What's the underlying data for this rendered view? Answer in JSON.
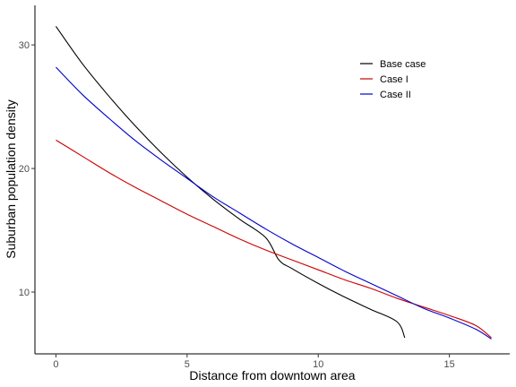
{
  "chart_data": {
    "type": "line",
    "xlabel": "Distance from downtown area",
    "ylabel": "Suburban population density",
    "xlim": [
      -0.8,
      17.3
    ],
    "ylim": [
      5.0,
      33.2
    ],
    "xticks": [
      0,
      5,
      10,
      15
    ],
    "yticks": [
      10,
      20,
      30
    ],
    "grid": false,
    "legend_position": "top-right",
    "series": [
      {
        "name": "Base case",
        "color": "#000000",
        "x": [
          0,
          1,
          2,
          3,
          4,
          5,
          6,
          7,
          8,
          8.5,
          9,
          10,
          11,
          12,
          13,
          13.3
        ],
        "y": [
          31.5,
          28.5,
          25.9,
          23.5,
          21.3,
          19.3,
          17.5,
          15.9,
          14.4,
          12.6,
          11.9,
          10.7,
          9.6,
          8.6,
          7.6,
          6.3
        ]
      },
      {
        "name": "Case I",
        "color": "#cc0000",
        "x": [
          0,
          1,
          2,
          3,
          4,
          5,
          6,
          7,
          8,
          9,
          10,
          11,
          12,
          13,
          14,
          15,
          16,
          16.6
        ],
        "y": [
          22.3,
          21.0,
          19.7,
          18.5,
          17.4,
          16.3,
          15.3,
          14.3,
          13.4,
          12.6,
          11.8,
          11.0,
          10.3,
          9.5,
          8.8,
          8.1,
          7.3,
          6.3
        ]
      },
      {
        "name": "Case II",
        "color": "#0000cc",
        "x": [
          0,
          1,
          2,
          3,
          4,
          5,
          6,
          7,
          8,
          9,
          10,
          11,
          12,
          13,
          14,
          15,
          16,
          16.6
        ],
        "y": [
          28.2,
          26.0,
          24.1,
          22.3,
          20.7,
          19.2,
          17.7,
          16.4,
          15.1,
          13.9,
          12.8,
          11.7,
          10.7,
          9.7,
          8.7,
          7.9,
          7.0,
          6.2
        ]
      }
    ]
  }
}
